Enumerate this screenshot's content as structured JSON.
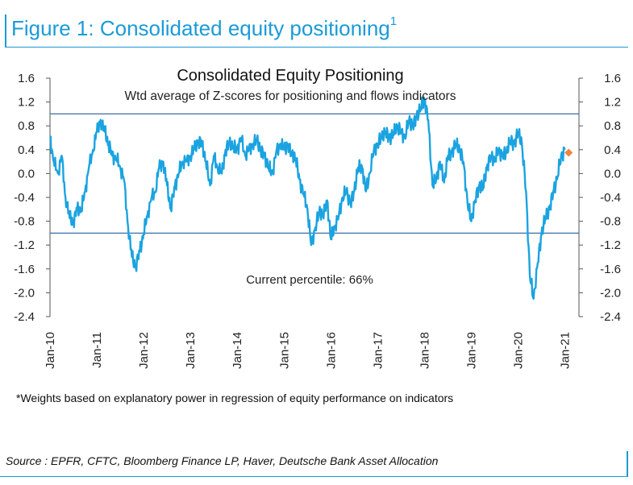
{
  "figure": {
    "title": "Figure 1: Consolidated equity positioning",
    "title_superscript": "1",
    "footnote": "*Weights based on explanatory power in regression of equity performance on indicators",
    "source": "Source : EPFR, CFTC, Bloomberg Finance LP, Haver, Deutsche Bank Asset Allocation"
  },
  "colors": {
    "accent": "#1a9bd7",
    "series": "#1aa3e0",
    "threshold": "#3a6fa5",
    "current_marker": "#f0843c"
  },
  "chart_data": {
    "type": "line",
    "title": "Consolidated Equity Positioning",
    "subtitle": "Wtd average of Z-scores for positioning and flows indicators",
    "annotation": "Current percentile: 66%",
    "xlabel": "",
    "ylabel": "",
    "ylim": [
      -2.4,
      1.6
    ],
    "xlim": [
      2010.0,
      2021.3
    ],
    "y_ticks": [
      "1.6",
      "1.2",
      "0.8",
      "0.4",
      "0.0",
      "-0.4",
      "-0.8",
      "-1.2",
      "-1.6",
      "-2.0",
      "-2.4"
    ],
    "x_ticks": [
      {
        "label": "Jan-10",
        "x": 2010.0
      },
      {
        "label": "Jan-11",
        "x": 2011.0
      },
      {
        "label": "Jan-12",
        "x": 2012.0
      },
      {
        "label": "Jan-13",
        "x": 2013.0
      },
      {
        "label": "Jan-14",
        "x": 2014.0
      },
      {
        "label": "Jan-15",
        "x": 2015.0
      },
      {
        "label": "Jan-16",
        "x": 2016.0
      },
      {
        "label": "Jan-17",
        "x": 2017.0
      },
      {
        "label": "Jan-18",
        "x": 2018.0
      },
      {
        "label": "Jan-19",
        "x": 2019.0
      },
      {
        "label": "Jan-20",
        "x": 2020.0
      },
      {
        "label": "Jan-21",
        "x": 2021.0
      }
    ],
    "threshold_lines": [
      1.0,
      -1.0
    ],
    "current_point": {
      "x": 2021.08,
      "y": 0.35
    },
    "series": [
      {
        "name": "Consolidated equity positioning",
        "x": [
          2010.0,
          2010.08,
          2010.17,
          2010.25,
          2010.33,
          2010.42,
          2010.5,
          2010.58,
          2010.67,
          2010.75,
          2010.83,
          2010.92,
          2011.0,
          2011.08,
          2011.17,
          2011.25,
          2011.33,
          2011.42,
          2011.5,
          2011.58,
          2011.67,
          2011.75,
          2011.83,
          2011.92,
          2012.0,
          2012.08,
          2012.17,
          2012.25,
          2012.33,
          2012.42,
          2012.5,
          2012.58,
          2012.67,
          2012.75,
          2012.83,
          2012.92,
          2013.0,
          2013.08,
          2013.17,
          2013.25,
          2013.33,
          2013.42,
          2013.5,
          2013.58,
          2013.67,
          2013.75,
          2013.83,
          2013.92,
          2014.0,
          2014.08,
          2014.17,
          2014.25,
          2014.33,
          2014.42,
          2014.5,
          2014.58,
          2014.67,
          2014.75,
          2014.83,
          2014.92,
          2015.0,
          2015.08,
          2015.17,
          2015.25,
          2015.33,
          2015.42,
          2015.5,
          2015.58,
          2015.67,
          2015.75,
          2015.83,
          2015.92,
          2016.0,
          2016.08,
          2016.17,
          2016.25,
          2016.33,
          2016.42,
          2016.5,
          2016.58,
          2016.67,
          2016.75,
          2016.83,
          2016.92,
          2017.0,
          2017.08,
          2017.17,
          2017.25,
          2017.33,
          2017.42,
          2017.5,
          2017.58,
          2017.67,
          2017.75,
          2017.83,
          2017.92,
          2018.0,
          2018.08,
          2018.17,
          2018.25,
          2018.33,
          2018.42,
          2018.5,
          2018.58,
          2018.67,
          2018.75,
          2018.83,
          2018.92,
          2019.0,
          2019.08,
          2019.17,
          2019.25,
          2019.33,
          2019.42,
          2019.5,
          2019.58,
          2019.67,
          2019.75,
          2019.83,
          2019.92,
          2020.0,
          2020.08,
          2020.17,
          2020.25,
          2020.33,
          2020.42,
          2020.5,
          2020.58,
          2020.67,
          2020.75,
          2020.83,
          2020.92,
          2021.0
        ],
        "values": [
          0.6,
          0.2,
          0.0,
          0.3,
          -0.4,
          -0.75,
          -0.8,
          -0.6,
          -0.6,
          -0.3,
          0.1,
          0.4,
          0.7,
          0.9,
          0.7,
          0.5,
          0.3,
          0.25,
          0.1,
          -0.1,
          -0.9,
          -1.4,
          -1.55,
          -1.3,
          -1.0,
          -0.7,
          -0.4,
          -0.3,
          0.1,
          0.2,
          -0.2,
          -0.6,
          -0.2,
          0.0,
          0.2,
          0.2,
          0.3,
          0.4,
          0.55,
          0.5,
          0.2,
          -0.2,
          0.3,
          0.1,
          0.0,
          0.4,
          0.5,
          0.45,
          0.4,
          0.6,
          0.3,
          0.4,
          0.5,
          0.55,
          0.4,
          0.3,
          0.1,
          0.0,
          0.35,
          0.5,
          0.4,
          0.5,
          0.3,
          0.25,
          -0.1,
          -0.35,
          -0.6,
          -1.2,
          -0.9,
          -0.65,
          -0.7,
          -0.45,
          -1.1,
          -0.9,
          -0.7,
          -0.4,
          -0.3,
          -0.5,
          -0.3,
          0.1,
          0.1,
          -0.3,
          0.0,
          0.4,
          0.5,
          0.6,
          0.7,
          0.6,
          0.65,
          0.8,
          0.7,
          0.6,
          0.9,
          0.8,
          0.95,
          1.1,
          1.25,
          0.9,
          -0.2,
          -0.1,
          0.2,
          -0.15,
          0.3,
          0.35,
          0.5,
          0.4,
          0.2,
          -0.5,
          -0.8,
          -0.45,
          -0.2,
          -0.25,
          0.1,
          0.3,
          0.2,
          0.4,
          0.3,
          0.35,
          0.55,
          0.5,
          0.7,
          0.5,
          -0.3,
          -1.7,
          -2.1,
          -1.5,
          -1.0,
          -0.75,
          -0.6,
          -0.3,
          -0.1,
          0.3,
          0.4
        ]
      }
    ]
  }
}
